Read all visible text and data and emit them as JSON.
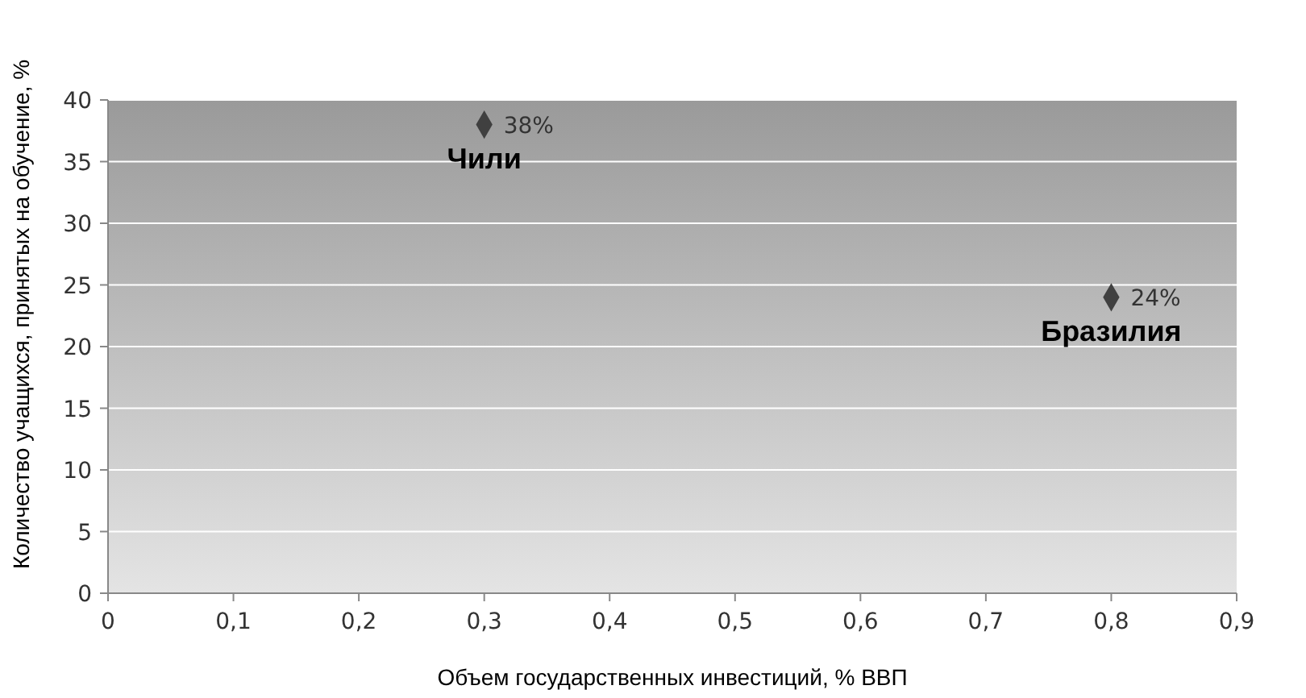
{
  "chart_data": {
    "type": "scatter",
    "xlabel": "Объем государственных инвестиций, % ВВП",
    "ylabel": "Количество учащихся, принятых на обучение, %",
    "x": [
      0.3,
      0.8
    ],
    "values": [
      38,
      24
    ],
    "color": "#404040",
    "marker": "diamond",
    "value_labels": [
      "38%",
      "24%"
    ],
    "annotations": [
      {
        "text": "Чили",
        "x": 0.3,
        "y": 38
      },
      {
        "text": "Бразилия",
        "x": 0.8,
        "y": 24
      }
    ],
    "xlim": [
      0,
      0.9
    ],
    "xticks": [
      0,
      {
        "value": 0.1,
        "label": "0,1"
      },
      {
        "value": 0.2,
        "label": "0,2"
      },
      {
        "value": 0.3,
        "label": "0,3"
      },
      {
        "value": 0.4,
        "label": "0,4"
      },
      {
        "value": 0.5,
        "label": "0,5"
      },
      {
        "value": 0.6,
        "label": "0,6"
      },
      {
        "value": 0.7,
        "label": "0,7"
      },
      {
        "value": 0.8,
        "label": "0,8"
      },
      {
        "value": 0.9,
        "label": "0,9"
      }
    ],
    "ylim": [
      0,
      40
    ],
    "yticks": [
      0,
      5,
      10,
      15,
      20,
      25,
      30,
      35,
      40
    ],
    "grid": "y"
  }
}
